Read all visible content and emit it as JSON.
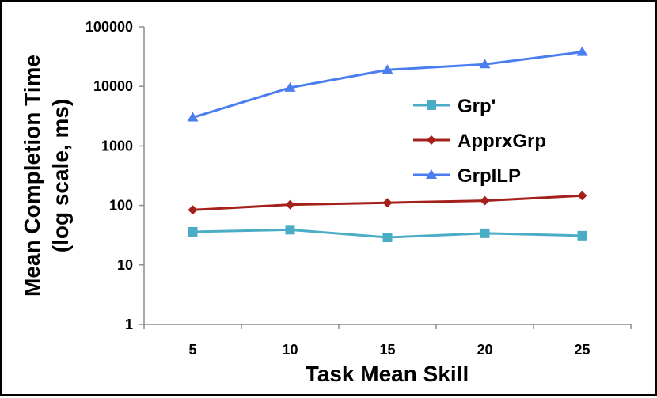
{
  "chart_data": {
    "type": "line",
    "title": "",
    "xlabel": "Task Mean Skill",
    "ylabel_line1": "Mean Completion Time",
    "ylabel_line2": "(log scale, ms)",
    "yscale": "log",
    "ylim": [
      1,
      100000
    ],
    "y_ticks": [
      "1",
      "10",
      "100",
      "1000",
      "10000",
      "100000"
    ],
    "categories": [
      "5",
      "10",
      "15",
      "20",
      "25"
    ],
    "grid": false,
    "legend_position": "right-center",
    "series": [
      {
        "name": "Grp'",
        "color": "#4bacc6",
        "marker": "square",
        "values": [
          36,
          39,
          29,
          34,
          31
        ]
      },
      {
        "name": "ApprxGrp",
        "color": "#a5201b",
        "marker": "diamond",
        "values": [
          84,
          103,
          111,
          120,
          146
        ]
      },
      {
        "name": "GrpILP",
        "color": "#4a7ef0",
        "marker": "triangle",
        "values": [
          3000,
          9500,
          19000,
          23500,
          38000
        ]
      }
    ]
  }
}
